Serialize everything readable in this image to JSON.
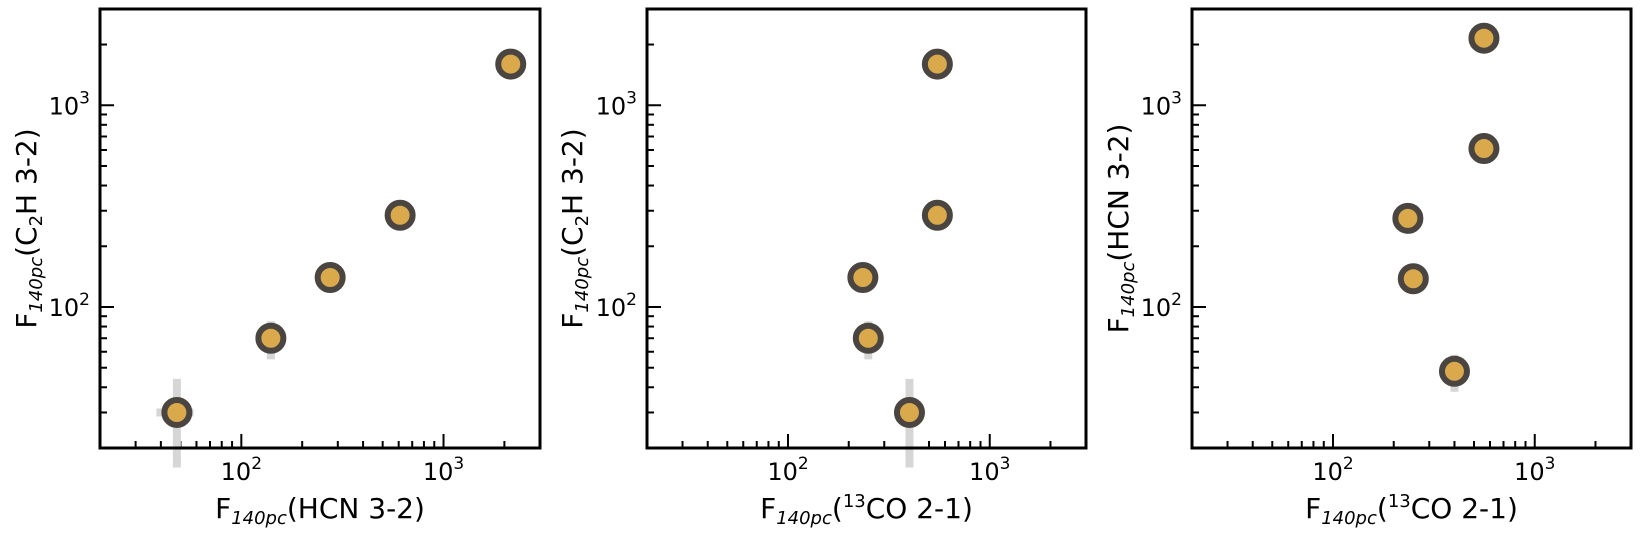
{
  "chart_data": [
    {
      "type": "scatter",
      "xlabel": {
        "prefix": "F",
        "sub": "140pc",
        "suffix": "(HCN 3-2)"
      },
      "ylabel": {
        "prefix": "F",
        "sub": "140pc",
        "suffix": "(C",
        "sub2": "2",
        "suffix2": "H 3-2)"
      },
      "xscale": "log",
      "yscale": "log",
      "xlim": [
        20,
        3000
      ],
      "ylim": [
        20,
        3000
      ],
      "x_ticks": [
        {
          "base": "10",
          "exp": "2",
          "value": 100
        },
        {
          "base": "10",
          "exp": "3",
          "value": 1000
        }
      ],
      "y_ticks": [
        {
          "base": "10",
          "exp": "2",
          "value": 100
        },
        {
          "base": "10",
          "exp": "3",
          "value": 1000
        }
      ],
      "points": [
        {
          "x": 48,
          "y": 30,
          "xerr": 10,
          "yerr": 14
        },
        {
          "x": 140,
          "y": 70,
          "xerr": 0,
          "yerr": 15
        },
        {
          "x": 275,
          "y": 140,
          "xerr": 0,
          "yerr": 0
        },
        {
          "x": 610,
          "y": 285,
          "xerr": 0,
          "yerr": 0
        },
        {
          "x": 2150,
          "y": 1600,
          "xerr": 0,
          "yerr": 0
        }
      ]
    },
    {
      "type": "scatter",
      "xlabel": {
        "prefix": "F",
        "sub": "140pc",
        "suffix": "(",
        "sup": "13",
        "suffix2": "CO 2-1)"
      },
      "ylabel": {
        "prefix": "F",
        "sub": "140pc",
        "suffix": "(C",
        "sub2": "2",
        "suffix2": "H 3-2)"
      },
      "xscale": "log",
      "yscale": "log",
      "xlim": [
        20,
        3000
      ],
      "ylim": [
        20,
        3000
      ],
      "x_ticks": [
        {
          "base": "10",
          "exp": "2",
          "value": 100
        },
        {
          "base": "10",
          "exp": "3",
          "value": 1000
        }
      ],
      "y_ticks": [
        {
          "base": "10",
          "exp": "2",
          "value": 100
        },
        {
          "base": "10",
          "exp": "3",
          "value": 1000
        }
      ],
      "points": [
        {
          "x": 400,
          "y": 30,
          "xerr": 0,
          "yerr": 14
        },
        {
          "x": 250,
          "y": 70,
          "xerr": 0,
          "yerr": 15
        },
        {
          "x": 235,
          "y": 140,
          "xerr": 0,
          "yerr": 0
        },
        {
          "x": 550,
          "y": 285,
          "xerr": 0,
          "yerr": 0
        },
        {
          "x": 550,
          "y": 1600,
          "xerr": 0,
          "yerr": 0
        }
      ]
    },
    {
      "type": "scatter",
      "xlabel": {
        "prefix": "F",
        "sub": "140pc",
        "suffix": "(",
        "sup": "13",
        "suffix2": "CO 2-1)"
      },
      "ylabel": {
        "prefix": "F",
        "sub": "140pc",
        "suffix": "(HCN 3-2)"
      },
      "xscale": "log",
      "yscale": "log",
      "xlim": [
        20,
        3000
      ],
      "ylim": [
        20,
        3000
      ],
      "x_ticks": [
        {
          "base": "10",
          "exp": "2",
          "value": 100
        },
        {
          "base": "10",
          "exp": "3",
          "value": 1000
        }
      ],
      "y_ticks": [
        {
          "base": "10",
          "exp": "2",
          "value": 100
        },
        {
          "base": "10",
          "exp": "3",
          "value": 1000
        }
      ],
      "points": [
        {
          "x": 400,
          "y": 48,
          "xerr": 0,
          "yerr": 10
        },
        {
          "x": 250,
          "y": 138,
          "xerr": 0,
          "yerr": 0
        },
        {
          "x": 235,
          "y": 275,
          "xerr": 0,
          "yerr": 0
        },
        {
          "x": 560,
          "y": 610,
          "xerr": 0,
          "yerr": 0
        },
        {
          "x": 560,
          "y": 2150,
          "xerr": 0,
          "yerr": 0
        }
      ]
    }
  ],
  "style": {
    "marker_fill": "#d9a94c",
    "marker_edge": "#4a4540",
    "errorbar_color": "#d6d6d6",
    "axis_color": "#000000"
  }
}
